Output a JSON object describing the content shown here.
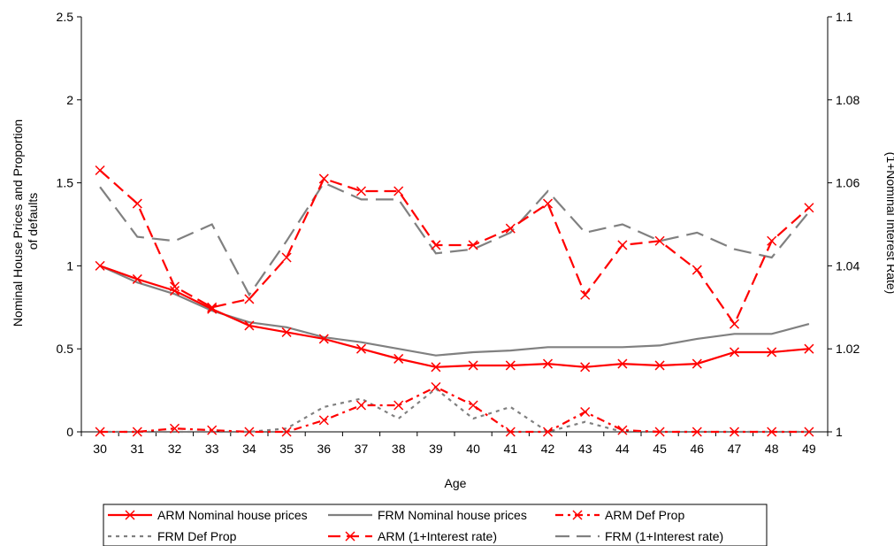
{
  "chart_data": {
    "type": "line",
    "xlabel": "Age",
    "ylabel_left": "Nominal House Prices and Proportion of defaults",
    "ylabel_right": "(1+Nominal Interest Rate)",
    "ylim_left": [
      0,
      2.5
    ],
    "ylim_right": [
      1,
      1.1
    ],
    "yticks_left": [
      "0",
      "0.5",
      "1",
      "1.5",
      "2",
      "2.5"
    ],
    "yticks_right": [
      "1",
      "1.02",
      "1.04",
      "1.06",
      "1.08",
      "1.1"
    ],
    "x": [
      30,
      31,
      32,
      33,
      34,
      35,
      36,
      37,
      38,
      39,
      40,
      41,
      42,
      43,
      44,
      45,
      46,
      47,
      48,
      49
    ],
    "grid": false,
    "legend_position": "bottom",
    "series": [
      {
        "name": "ARM Nominal house prices",
        "axis": "left",
        "color": "#ff0000",
        "style": "solid",
        "marker": "x",
        "values": [
          1.0,
          0.92,
          0.85,
          0.74,
          0.64,
          0.6,
          0.56,
          0.5,
          0.44,
          0.39,
          0.4,
          0.4,
          0.41,
          0.39,
          0.41,
          0.4,
          0.41,
          0.48,
          0.48,
          0.5
        ]
      },
      {
        "name": "FRM Nominal house prices",
        "axis": "left",
        "color": "#808080",
        "style": "solid",
        "marker": "none",
        "values": [
          1.0,
          0.9,
          0.83,
          0.73,
          0.66,
          0.63,
          0.57,
          0.54,
          0.5,
          0.46,
          0.48,
          0.49,
          0.51,
          0.51,
          0.51,
          0.52,
          0.56,
          0.59,
          0.59,
          0.65
        ]
      },
      {
        "name": "ARM Def Prop",
        "axis": "left",
        "color": "#ff0000",
        "style": "dash-dot",
        "marker": "x",
        "values": [
          0.0,
          0.0,
          0.02,
          0.01,
          0.0,
          0.0,
          0.07,
          0.16,
          0.16,
          0.27,
          0.16,
          0.0,
          0.0,
          0.12,
          0.01,
          0.0,
          0.0,
          0.0,
          0.0,
          0.0
        ]
      },
      {
        "name": "FRM Def Prop",
        "axis": "left",
        "color": "#808080",
        "style": "dotted",
        "marker": "none",
        "values": [
          0.0,
          0.0,
          0.0,
          0.0,
          0.0,
          0.02,
          0.15,
          0.2,
          0.08,
          0.26,
          0.08,
          0.15,
          0.0,
          0.06,
          0.0,
          0.0,
          0.0,
          0.0,
          0.0,
          0.0
        ]
      },
      {
        "name": "ARM (1+Interest rate)",
        "axis": "right",
        "color": "#ff0000",
        "style": "dashed",
        "marker": "x",
        "values": [
          1.063,
          1.055,
          1.035,
          1.03,
          1.032,
          1.042,
          1.061,
          1.058,
          1.058,
          1.045,
          1.045,
          1.049,
          1.055,
          1.033,
          1.045,
          1.046,
          1.039,
          1.026,
          1.046,
          1.054
        ]
      },
      {
        "name": "FRM (1+Interest rate)",
        "axis": "right",
        "color": "#808080",
        "style": "long-dash",
        "marker": "none",
        "values": [
          1.059,
          1.047,
          1.046,
          1.05,
          1.033,
          1.046,
          1.06,
          1.056,
          1.056,
          1.043,
          1.044,
          1.048,
          1.058,
          1.048,
          1.05,
          1.046,
          1.048,
          1.044,
          1.042,
          1.053
        ]
      }
    ]
  }
}
